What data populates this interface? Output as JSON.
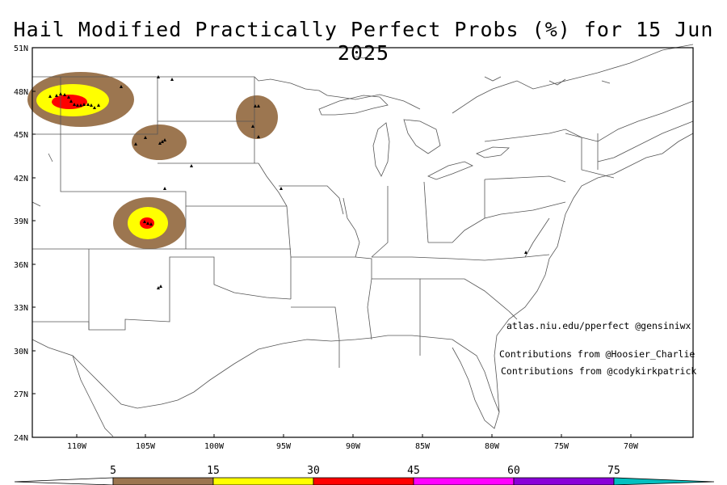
{
  "title": "Hail Modified Practically Perfect Probs (%) for 15 Jun 2025",
  "credits": {
    "line1": "atlas.niu.edu/pperfect @gensiniwx",
    "line2": "Contributions from @Hoosier_Charlie",
    "line3": "Contributions from @codykirkpatrick"
  },
  "axes": {
    "lat_labels": [
      "51N",
      "48N",
      "45N",
      "42N",
      "39N",
      "36N",
      "33N",
      "30N",
      "27N",
      "24N"
    ],
    "lon_labels": [
      "110W",
      "105W",
      "100W",
      "95W",
      "90W",
      "85W",
      "80W",
      "75W",
      "70W"
    ]
  },
  "legend": {
    "ticks": [
      "5",
      "15",
      "30",
      "45",
      "60",
      "75"
    ],
    "colors": [
      "#ffffff",
      "#9c7650",
      "#ffff00",
      "#ff0000",
      "#ff00ff",
      "#8a00d8",
      "#00c0c0"
    ]
  },
  "prob_areas": [
    {
      "name": "montana",
      "levels": [
        "#9c7650",
        "#ffff00",
        "#ff0000"
      ]
    },
    {
      "name": "se-montana",
      "levels": [
        "#9c7650"
      ]
    },
    {
      "name": "ne-south-dakota",
      "levels": [
        "#9c7650"
      ]
    },
    {
      "name": "colorado",
      "levels": [
        "#9c7650",
        "#ffff00",
        "#ff0000"
      ]
    }
  ]
}
